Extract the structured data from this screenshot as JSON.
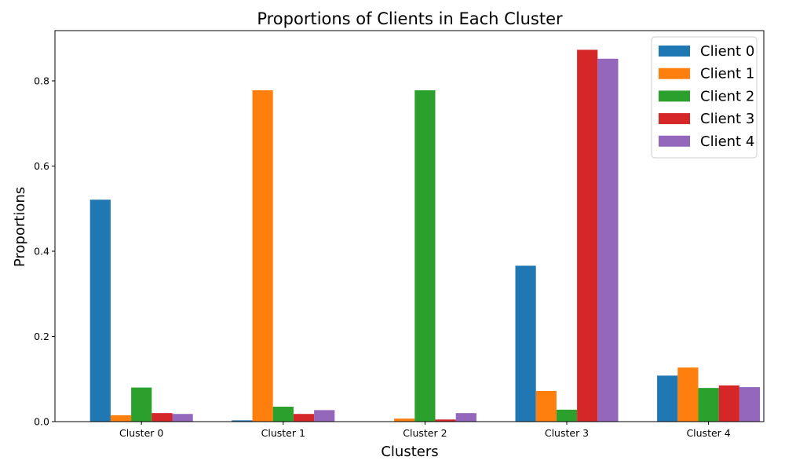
{
  "chart_data": {
    "type": "bar",
    "title": "Proportions of Clients in Each Cluster",
    "xlabel": "Clusters",
    "ylabel": "Proportions",
    "categories": [
      "Cluster 0",
      "Cluster 1",
      "Cluster 2",
      "Cluster 3",
      "Cluster 4"
    ],
    "ylim": [
      0,
      0.918
    ],
    "yticks": [
      0.0,
      0.2,
      0.4,
      0.6,
      0.8
    ],
    "ytick_labels": [
      "0.0",
      "0.2",
      "0.4",
      "0.6",
      "0.8"
    ],
    "grid": false,
    "legend_position": "top-right",
    "series": [
      {
        "name": "Client 0",
        "color": "#1f77b4",
        "values": [
          0.521,
          0.003,
          0.0,
          0.366,
          0.108
        ]
      },
      {
        "name": "Client 1",
        "color": "#ff7f0e",
        "values": [
          0.015,
          0.778,
          0.007,
          0.072,
          0.127
        ]
      },
      {
        "name": "Client 2",
        "color": "#2ca02c",
        "values": [
          0.08,
          0.035,
          0.778,
          0.028,
          0.079
        ]
      },
      {
        "name": "Client 3",
        "color": "#d62728",
        "values": [
          0.02,
          0.018,
          0.005,
          0.873,
          0.085
        ]
      },
      {
        "name": "Client 4",
        "color": "#9467bd",
        "values": [
          0.018,
          0.027,
          0.02,
          0.852,
          0.081
        ]
      }
    ]
  }
}
